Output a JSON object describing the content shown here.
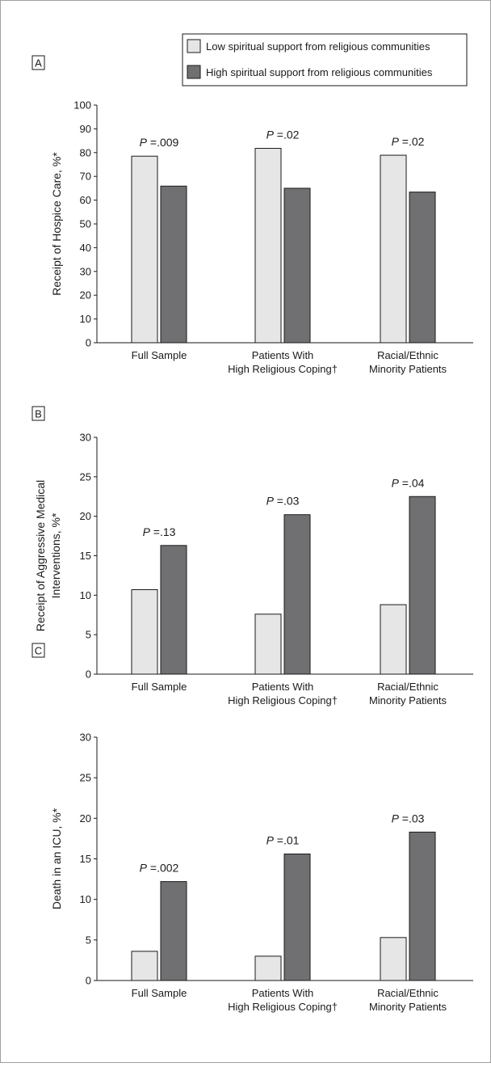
{
  "colors": {
    "low": "#e6e6e6",
    "high": "#707073",
    "stroke": "#1a1a1a",
    "frame": "#a0a0a0"
  },
  "legend": {
    "low_label": "Low spiritual support from religious communities",
    "high_label": "High spiritual support from religious communities"
  },
  "chart_data": [
    {
      "type": "bar",
      "panel": "A",
      "ylabel": "Receipt of Hospice Care, %*",
      "ylim": [
        0,
        100
      ],
      "yticks": [
        0,
        10,
        20,
        30,
        40,
        50,
        60,
        70,
        80,
        90,
        100
      ],
      "categories": [
        [
          "Full Sample"
        ],
        [
          "Patients With",
          "High Religious Coping†"
        ],
        [
          "Racial/Ethnic",
          "Minority Patients"
        ]
      ],
      "series": [
        {
          "name": "Low spiritual support from religious communities",
          "values": [
            78.5,
            81.8,
            78.9
          ]
        },
        {
          "name": "High spiritual support from religious communities",
          "values": [
            65.9,
            65.0,
            63.4
          ]
        }
      ],
      "p_values": [
        "=.009",
        "=.02",
        "=.02"
      ],
      "grid": false,
      "legend": "top-right"
    },
    {
      "type": "bar",
      "panel": "B",
      "ylabel": [
        "Receipt of Aggressive Medical",
        "Interventions, %*"
      ],
      "ylim": [
        0,
        30
      ],
      "yticks": [
        0,
        5,
        10,
        15,
        20,
        25,
        30
      ],
      "categories": [
        [
          "Full Sample"
        ],
        [
          "Patients With",
          "High Religious Coping†"
        ],
        [
          "Racial/Ethnic",
          "Minority Patients"
        ]
      ],
      "series": [
        {
          "name": "Low spiritual support from religious communities",
          "values": [
            10.7,
            7.6,
            8.8
          ]
        },
        {
          "name": "High spiritual support from religious communities",
          "values": [
            16.3,
            20.2,
            22.5
          ]
        }
      ],
      "p_values": [
        "=.13",
        "=.03",
        "=.04"
      ],
      "grid": false
    },
    {
      "type": "bar",
      "panel": "C",
      "ylabel": "Death in an ICU, %*",
      "ylim": [
        0,
        30
      ],
      "yticks": [
        0,
        5,
        10,
        15,
        20,
        25,
        30
      ],
      "categories": [
        [
          "Full Sample"
        ],
        [
          "Patients With",
          "High Religious Coping†"
        ],
        [
          "Racial/Ethnic",
          "Minority Patients"
        ]
      ],
      "series": [
        {
          "name": "Low spiritual support from religious communities",
          "values": [
            3.6,
            3.0,
            5.3
          ]
        },
        {
          "name": "High spiritual support from religious communities",
          "values": [
            12.2,
            15.6,
            18.3
          ]
        }
      ],
      "p_values": [
        "=.002",
        "=.01",
        "=.03"
      ],
      "grid": false
    }
  ]
}
